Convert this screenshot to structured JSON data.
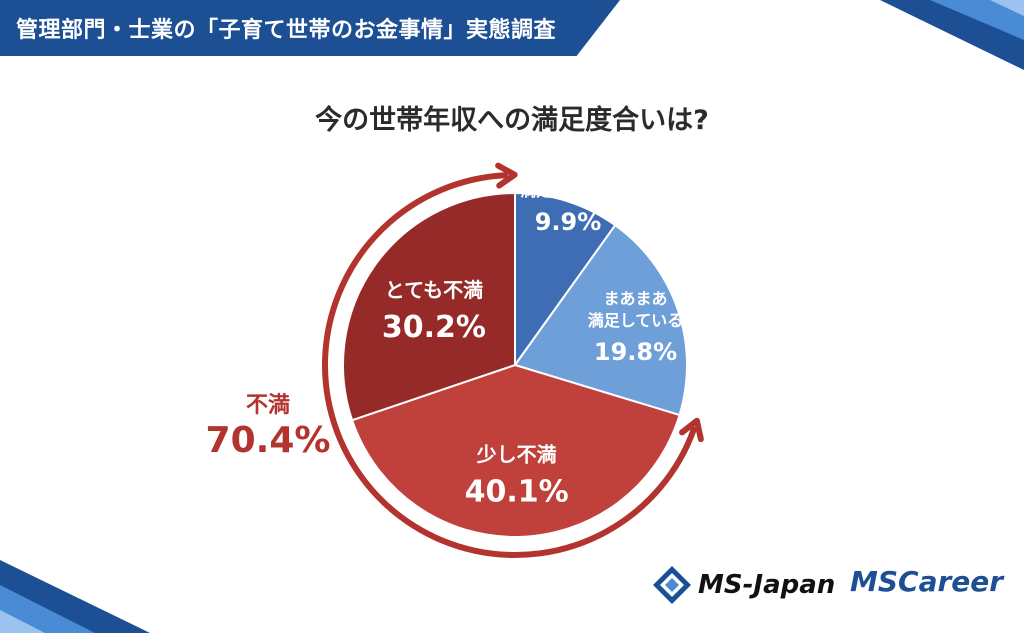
{
  "header": {
    "title": "管理部門・士業の「子育て世帯のお金事情」実態調査"
  },
  "chart_data": {
    "type": "pie",
    "title": "今の世帯年収への満足度合いは?",
    "slices": [
      {
        "label": "満足している",
        "value": 9.9,
        "value_text": "9.9%",
        "color": "#3f6db4"
      },
      {
        "label": "まあまあ満足している",
        "label_lines": [
          "まあまあ",
          "満足している"
        ],
        "value": 19.8,
        "value_text": "19.8%",
        "color": "#6f9fd8"
      },
      {
        "label": "少し不満",
        "value": 40.1,
        "value_text": "40.1%",
        "color": "#c0413b"
      },
      {
        "label": "とても不満",
        "value": 30.2,
        "value_text": "30.2%",
        "color": "#962a28"
      }
    ],
    "group_annotation": {
      "label": "不満",
      "value": 70.4,
      "value_text": "70.4%",
      "color": "#b3342f"
    }
  },
  "logos": {
    "ms_japan": "MS-Japan",
    "ms_career": "MSCareer"
  },
  "colors": {
    "header": "#1c4f93",
    "accent_red": "#b3342f"
  }
}
